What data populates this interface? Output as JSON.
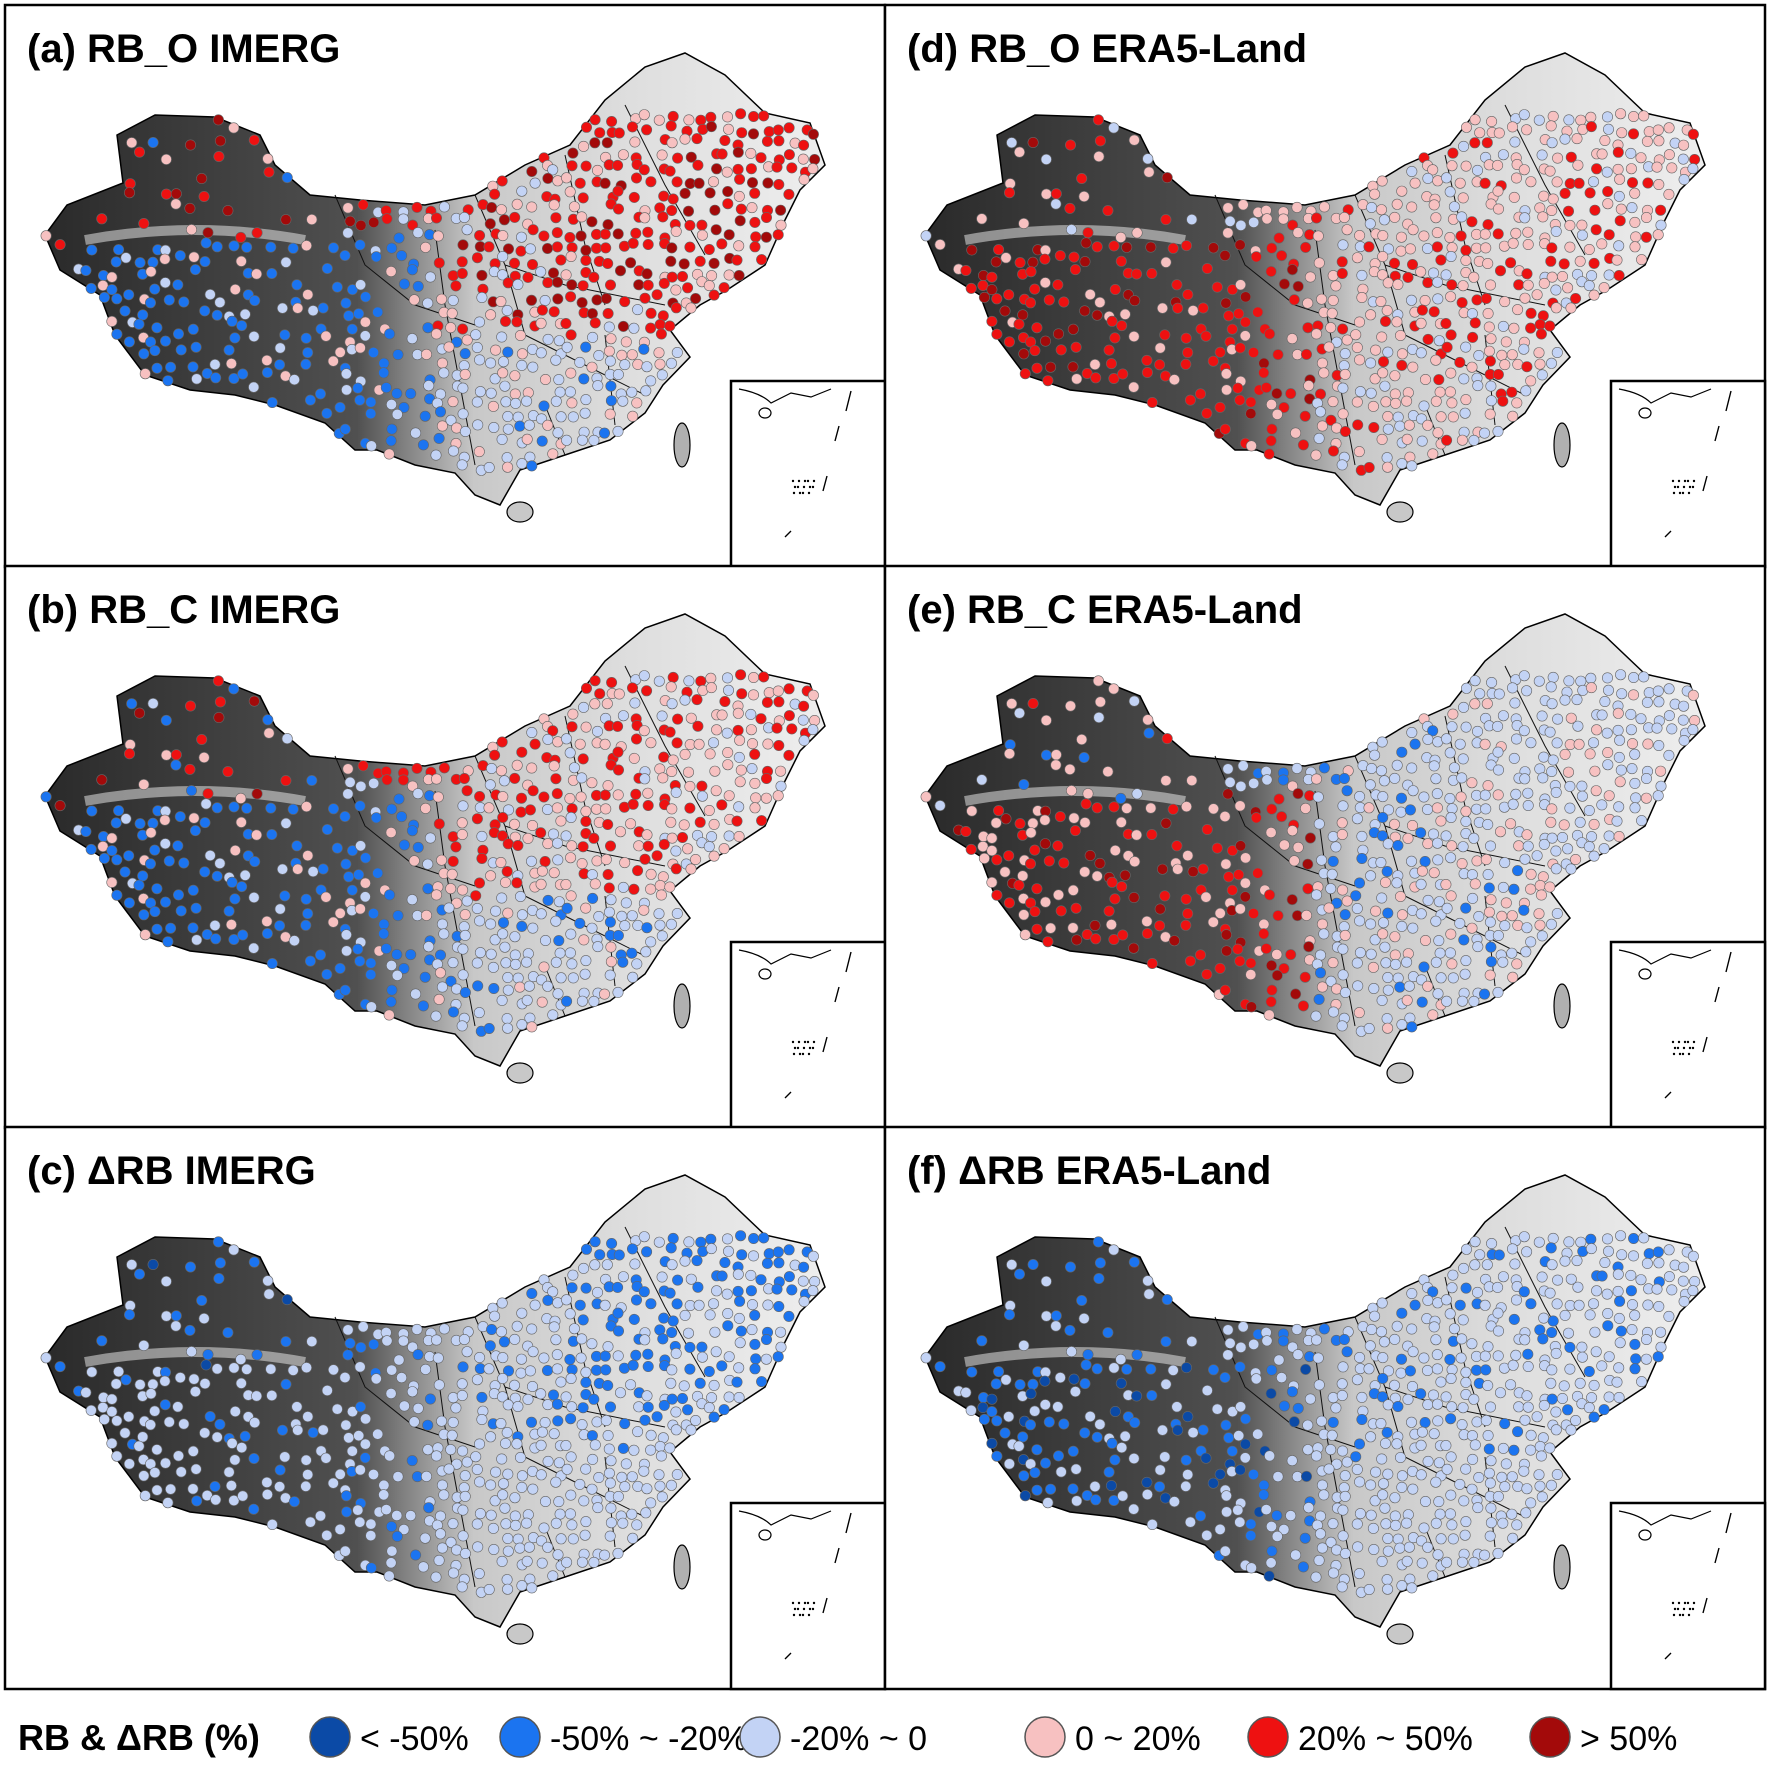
{
  "panels": [
    {
      "id": "a",
      "title": "(a) RB_O IMERG",
      "pattern": "rb_o_imerg"
    },
    {
      "id": "b",
      "title": "(b) RB_C IMERG",
      "pattern": "rb_c_imerg"
    },
    {
      "id": "c",
      "title": "(c) ΔRB IMERG",
      "pattern": "drb_imerg"
    },
    {
      "id": "d",
      "title": "(d) RB_O ERA5-Land",
      "pattern": "rb_o_era5"
    },
    {
      "id": "e",
      "title": "(e) RB_C ERA5-Land",
      "pattern": "rb_c_era5"
    },
    {
      "id": "f",
      "title": "(f) ΔRB ERA5-Land",
      "pattern": "drb_era5"
    }
  ],
  "legend": {
    "title": "RB & ΔRB (%)",
    "classes": [
      {
        "label": "< -50%",
        "color": "#0b4aa6"
      },
      {
        "label": "-50% ~ -20%",
        "color": "#1b74f0"
      },
      {
        "label": "-20% ~ 0",
        "color": "#c3d3f5"
      },
      {
        "label": "0 ~ 20%",
        "color": "#f7c1c1"
      },
      {
        "label": "20% ~ 50%",
        "color": "#ee1111"
      },
      {
        "label": "> 50%",
        "color": "#a30a0a"
      }
    ]
  }
}
